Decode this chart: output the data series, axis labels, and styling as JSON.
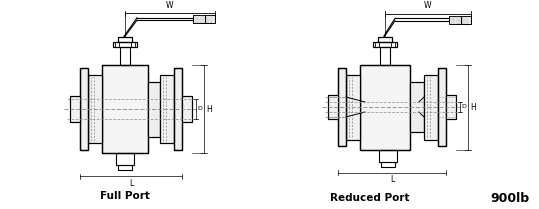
{
  "label_full_port": "Full Port",
  "label_reduced_port": "Reduced Port",
  "label_class": "900lb",
  "background_color": "#ffffff",
  "line_color": "#000000",
  "dashed_color": "#888888",
  "text_color": "#000000",
  "fig_width": 5.39,
  "fig_height": 2.09,
  "dpi": 100
}
